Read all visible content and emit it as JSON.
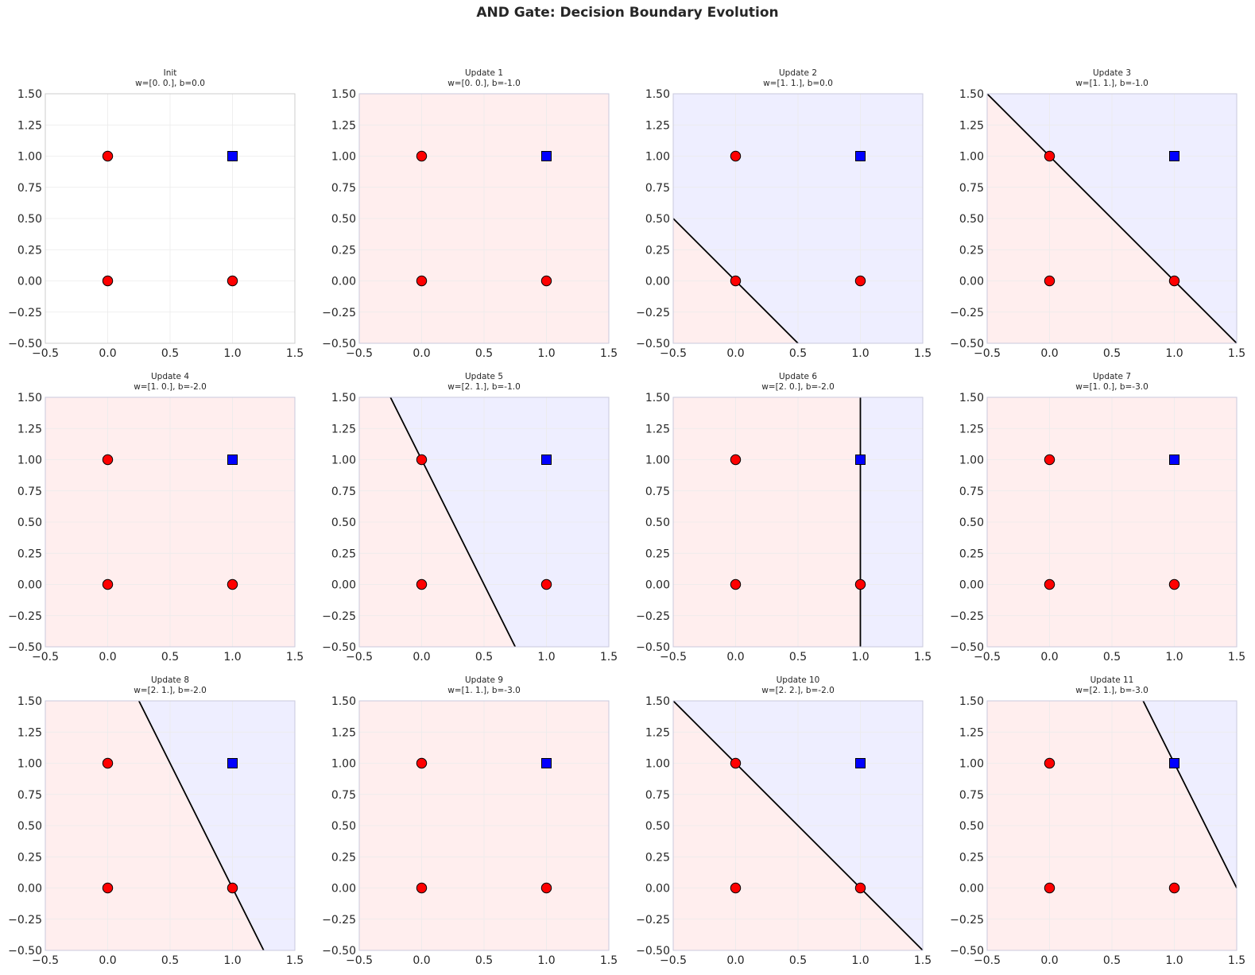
{
  "figure": {
    "title": "AND Gate: Decision Boundary Evolution"
  },
  "colors": {
    "class0_point": "#ff0000",
    "class1_point": "#0000ff",
    "point_edge": "#000000",
    "region_negative": "#ffeeee",
    "region_positive": "#eeeeff",
    "boundary": "#000000",
    "grid": "#ebebeb",
    "frame_plain": "#cccccc",
    "frame_shaded": "#c8c8dc"
  },
  "chart_data": {
    "type": "scatter",
    "xlim": [
      -0.5,
      1.5
    ],
    "ylim": [
      -0.5,
      1.5
    ],
    "xticks": [
      -0.5,
      0.0,
      0.5,
      1.0,
      1.5
    ],
    "yticks": [
      -0.5,
      -0.25,
      0.0,
      0.25,
      0.5,
      0.75,
      1.0,
      1.25,
      1.5
    ],
    "xtick_labels": [
      "−0.5",
      "0.0",
      "0.5",
      "1.0",
      "1.5"
    ],
    "ytick_labels": [
      "−0.50",
      "−0.25",
      "0.00",
      "0.25",
      "0.50",
      "0.75",
      "1.00",
      "1.25",
      "1.50"
    ],
    "grid": true,
    "points": [
      {
        "x": 0,
        "y": 0,
        "label": 0,
        "marker": "circle"
      },
      {
        "x": 0,
        "y": 1,
        "label": 0,
        "marker": "circle"
      },
      {
        "x": 1,
        "y": 0,
        "label": 0,
        "marker": "circle"
      },
      {
        "x": 1,
        "y": 1,
        "label": 1,
        "marker": "square"
      }
    ],
    "panels": [
      {
        "title": "Init",
        "subtitle": "w=[0. 0.], b=0.0",
        "w": [
          0,
          0
        ],
        "b": 0.0
      },
      {
        "title": "Update 1",
        "subtitle": "w=[0. 0.], b=-1.0",
        "w": [
          0,
          0
        ],
        "b": -1.0
      },
      {
        "title": "Update 2",
        "subtitle": "w=[1. 1.], b=0.0",
        "w": [
          1,
          1
        ],
        "b": 0.0
      },
      {
        "title": "Update 3",
        "subtitle": "w=[1. 1.], b=-1.0",
        "w": [
          1,
          1
        ],
        "b": -1.0
      },
      {
        "title": "Update 4",
        "subtitle": "w=[1. 0.], b=-2.0",
        "w": [
          1,
          0
        ],
        "b": -2.0
      },
      {
        "title": "Update 5",
        "subtitle": "w=[2. 1.], b=-1.0",
        "w": [
          2,
          1
        ],
        "b": -1.0
      },
      {
        "title": "Update 6",
        "subtitle": "w=[2. 0.], b=-2.0",
        "w": [
          2,
          0
        ],
        "b": -2.0
      },
      {
        "title": "Update 7",
        "subtitle": "w=[1. 0.], b=-3.0",
        "w": [
          1,
          0
        ],
        "b": -3.0
      },
      {
        "title": "Update 8",
        "subtitle": "w=[2. 1.], b=-2.0",
        "w": [
          2,
          1
        ],
        "b": -2.0
      },
      {
        "title": "Update 9",
        "subtitle": "w=[1. 1.], b=-3.0",
        "w": [
          1,
          1
        ],
        "b": -3.0
      },
      {
        "title": "Update 10",
        "subtitle": "w=[2. 2.], b=-2.0",
        "w": [
          2,
          2
        ],
        "b": -2.0
      },
      {
        "title": "Update 11",
        "subtitle": "w=[2. 1.], b=-3.0",
        "w": [
          2,
          1
        ],
        "b": -3.0
      }
    ]
  }
}
